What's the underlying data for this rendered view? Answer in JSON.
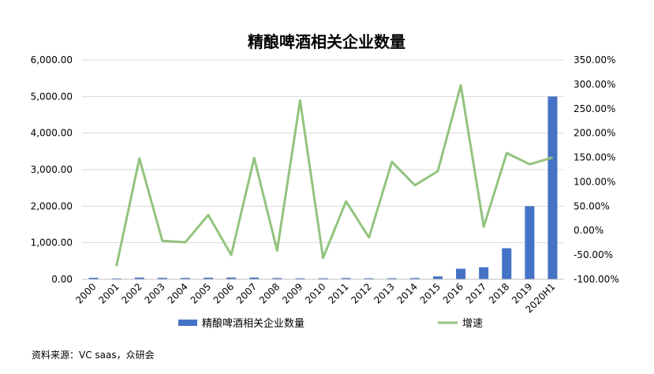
{
  "chart_data": {
    "type": "bar+line",
    "title": "精酿啤酒相关企业数量",
    "categories": [
      "2000",
      "2001",
      "2002",
      "2003",
      "2004",
      "2005",
      "2006",
      "2007",
      "2008",
      "2009",
      "2010",
      "2011",
      "2012",
      "2013",
      "2014",
      "2015",
      "2016",
      "2017",
      "2018",
      "2019",
      "2020H1"
    ],
    "series": [
      {
        "name": "精酿啤酒相关企业数量",
        "kind": "bar",
        "axis": "left",
        "color": "#4472C4",
        "values": [
          42,
          25,
          50,
          40,
          38,
          45,
          50,
          48,
          35,
          28,
          30,
          35,
          28,
          30,
          35,
          80,
          290,
          330,
          850,
          2000,
          5000
        ]
      },
      {
        "name": "增速",
        "kind": "line",
        "axis": "right",
        "color": "#92C47D",
        "values": [
          null,
          -73,
          148,
          -21,
          -24,
          32,
          -50,
          149,
          -41,
          267,
          -56,
          60,
          -14,
          141,
          93,
          122,
          298,
          8,
          159,
          136,
          150
        ]
      }
    ],
    "y_left": {
      "ylim": [
        0,
        6000
      ],
      "ticks": [
        0,
        1000,
        2000,
        3000,
        4000,
        5000,
        6000
      ],
      "tick_labels": [
        "0.00",
        "1,000.00",
        "2,000.00",
        "3,000.00",
        "4,000.00",
        "5,000.00",
        "6,000.00"
      ]
    },
    "y_right": {
      "ylim": [
        -100,
        350
      ],
      "ticks": [
        -100,
        -50,
        0,
        50,
        100,
        150,
        200,
        250,
        300,
        350
      ],
      "tick_labels": [
        "-100.00%",
        "-50.00%",
        "0.00%",
        "50.00%",
        "100.00%",
        "150.00%",
        "200.00%",
        "250.00%",
        "300.00%",
        "350.00%"
      ]
    },
    "grid": true,
    "legend": "bottom"
  },
  "source_note": "资料来源：VC saas，众研会"
}
